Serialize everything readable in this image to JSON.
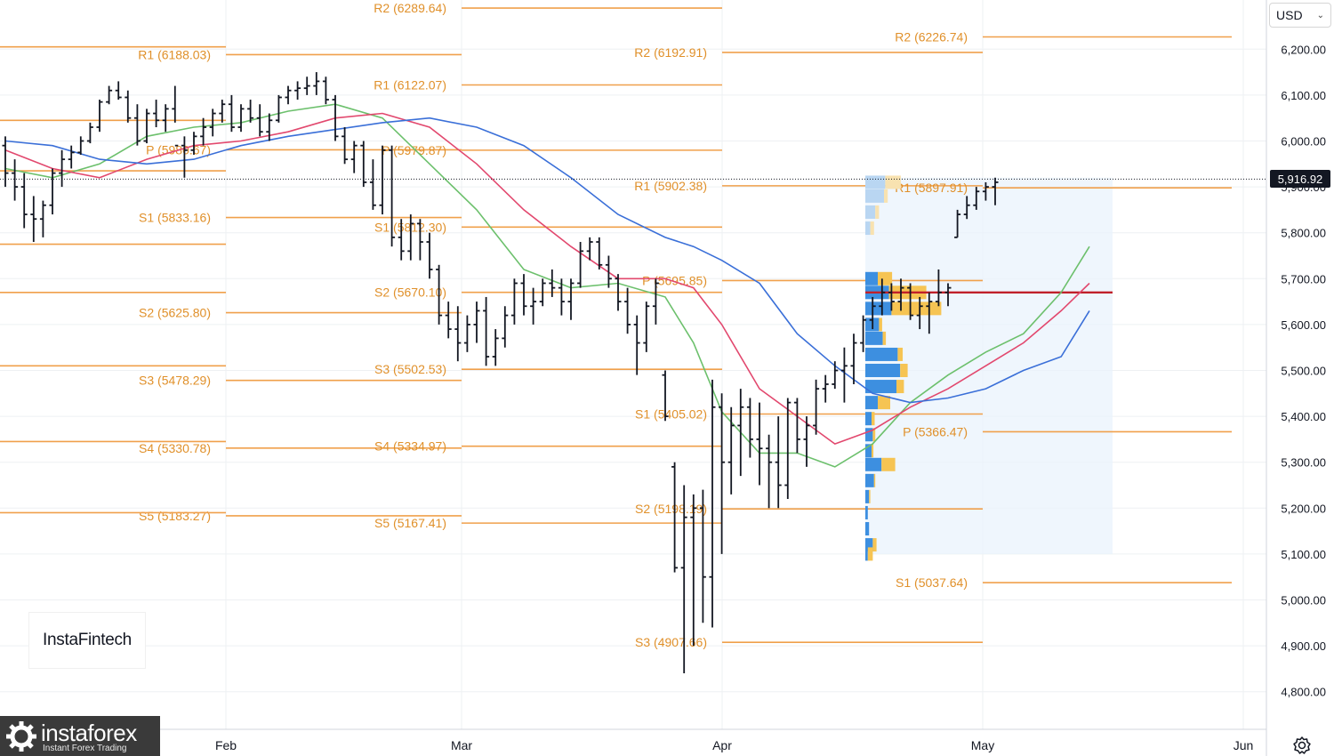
{
  "header": {
    "currency": "USD"
  },
  "price_scale": {
    "ticks": [
      {
        "value": 6200,
        "label": "6,200.00"
      },
      {
        "value": 6100,
        "label": "6,100.00"
      },
      {
        "value": 6000,
        "label": "6,000.00"
      },
      {
        "value": 5900,
        "label": "5,900.00"
      },
      {
        "value": 5800,
        "label": "5,800.00"
      },
      {
        "value": 5700,
        "label": "5,700.00"
      },
      {
        "value": 5600,
        "label": "5,600.00"
      },
      {
        "value": 5500,
        "label": "5,500.00"
      },
      {
        "value": 5400,
        "label": "5,400.00"
      },
      {
        "value": 5300,
        "label": "5,300.00"
      },
      {
        "value": 5200,
        "label": "5,200.00"
      },
      {
        "value": 5100,
        "label": "5,100.00"
      },
      {
        "value": 5000,
        "label": "5,000.00"
      },
      {
        "value": 4900,
        "label": "4,900.00"
      },
      {
        "value": 4800,
        "label": "4,800.00"
      }
    ],
    "last_price": "5,916.92"
  },
  "time_scale": [
    "Feb",
    "Mar",
    "Apr",
    "May",
    "Jun"
  ],
  "watermark": "InstaFintech",
  "brand": {
    "name": "instaforex",
    "tagline": "Instant Forex Trading"
  },
  "colors": {
    "pivot": "#f0a04b",
    "pivot_text": "#e0902a",
    "ma_fast": "#6cc06c",
    "ma_mid": "#e2486e",
    "ma_slow": "#3a6fd8",
    "bars": "#131722",
    "profile_up": "#3d8fe0",
    "profile_down": "#f6c453",
    "poc": "#c0202a"
  },
  "chart_data": {
    "type": "ohlc",
    "title": "",
    "ylim": [
      4720,
      6300
    ],
    "grid": true,
    "pivots": [
      {
        "period": "Jan",
        "levels": [
          {
            "name": "R1",
            "value": 6188.03,
            "label": "R1 (6188.03)"
          },
          {
            "name": "P",
            "value": 5980.67,
            "label": "P (5980.67)"
          },
          {
            "name": "S1",
            "value": 5833.16,
            "label": "S1 (5833.16)"
          },
          {
            "name": "S2",
            "value": 5625.8,
            "label": "S2 (5625.80)"
          },
          {
            "name": "S3",
            "value": 5478.29,
            "label": "S3 (5478.29)"
          },
          {
            "name": "S4",
            "value": 5330.78,
            "label": "S4 (5330.78)"
          },
          {
            "name": "S5",
            "value": 5183.27,
            "label": "S5 (5183.27)"
          }
        ]
      },
      {
        "period": "Feb",
        "levels": [
          {
            "name": "R2",
            "value": 6289.64,
            "label": "R2 (6289.64)"
          },
          {
            "name": "R1",
            "value": 6122.07,
            "label": "R1 (6122.07)"
          },
          {
            "name": "P",
            "value": 5979.87,
            "label": "P (5979.87)"
          },
          {
            "name": "S1",
            "value": 5812.3,
            "label": "S1 (5812.30)"
          },
          {
            "name": "S2",
            "value": 5670.1,
            "label": "S2 (5670.10)"
          },
          {
            "name": "S3",
            "value": 5502.53,
            "label": "S3 (5502.53)"
          },
          {
            "name": "S4",
            "value": 5334.97,
            "label": "S4 (5334.97)"
          },
          {
            "name": "S5",
            "value": 5167.41,
            "label": "S5 (5167.41)"
          }
        ]
      },
      {
        "period": "Mar",
        "levels": [
          {
            "name": "R2",
            "value": 6192.91,
            "label": "R2 (6192.91)"
          },
          {
            "name": "R1",
            "value": 5902.38,
            "label": "R1 (5902.38)"
          },
          {
            "name": "P",
            "value": 5695.85,
            "label": "P (5695.85)"
          },
          {
            "name": "S1",
            "value": 5405.02,
            "label": "S1 (5405.02)"
          },
          {
            "name": "S2",
            "value": 5198.19,
            "label": "S2 (5198.19)"
          },
          {
            "name": "S3",
            "value": 4907.66,
            "label": "S3 (4907.66)"
          }
        ]
      },
      {
        "period": "Apr",
        "levels": [
          {
            "name": "R2",
            "value": 6226.74,
            "label": "R2 (6226.74)"
          },
          {
            "name": "R1",
            "value": 5897.91,
            "label": "R1 (5897.91)"
          },
          {
            "name": "P",
            "value": 5366.47,
            "label": "P (5366.47)"
          },
          {
            "name": "S1",
            "value": 5037.64,
            "label": "S1 (5037.64)"
          }
        ]
      }
    ],
    "bars": [
      [
        5990,
        6010,
        5900,
        5930
      ],
      [
        5930,
        5960,
        5870,
        5900
      ],
      [
        5900,
        5930,
        5810,
        5840
      ],
      [
        5840,
        5880,
        5780,
        5830
      ],
      [
        5830,
        5870,
        5790,
        5860
      ],
      [
        5860,
        5940,
        5840,
        5930
      ],
      [
        5930,
        5980,
        5900,
        5960
      ],
      [
        5960,
        5990,
        5940,
        5975
      ],
      [
        5975,
        6010,
        5970,
        6000
      ],
      [
        6000,
        6040,
        5995,
        6030
      ],
      [
        6030,
        6090,
        6020,
        6085
      ],
      [
        6085,
        6120,
        6080,
        6110
      ],
      [
        6110,
        6130,
        6090,
        6095
      ],
      [
        6095,
        6110,
        6040,
        6050
      ],
      [
        6050,
        6080,
        5990,
        6000
      ],
      [
        6000,
        6070,
        5995,
        6060
      ],
      [
        6060,
        6090,
        6030,
        6045
      ],
      [
        6045,
        6080,
        6020,
        6070
      ],
      [
        6070,
        6120,
        6040,
        5990
      ],
      [
        5990,
        6010,
        5920,
        5980
      ],
      [
        5980,
        6020,
        5970,
        6010
      ],
      [
        6010,
        6050,
        5990,
        6030
      ],
      [
        6030,
        6070,
        6010,
        6060
      ],
      [
        6060,
        6090,
        6040,
        6080
      ],
      [
        6080,
        6100,
        6020,
        6030
      ],
      [
        6030,
        6080,
        6020,
        6070
      ],
      [
        6070,
        6090,
        6040,
        6050
      ],
      [
        6050,
        6080,
        6010,
        6020
      ],
      [
        6020,
        6060,
        6000,
        6045
      ],
      [
        6045,
        6100,
        6040,
        6095
      ],
      [
        6095,
        6120,
        6080,
        6110
      ],
      [
        6110,
        6130,
        6090,
        6115
      ],
      [
        6115,
        6140,
        6100,
        6120
      ],
      [
        6120,
        6150,
        6100,
        6130
      ],
      [
        6130,
        6140,
        6080,
        6090
      ],
      [
        6090,
        6100,
        6000,
        6010
      ],
      [
        6010,
        6030,
        5950,
        5960
      ],
      [
        5960,
        6000,
        5930,
        5990
      ],
      [
        5990,
        6000,
        5900,
        5910
      ],
      [
        5910,
        5960,
        5850,
        5860
      ],
      [
        5860,
        5990,
        5840,
        5980
      ],
      [
        5980,
        5990,
        5770,
        5790
      ],
      [
        5790,
        5830,
        5740,
        5760
      ],
      [
        5760,
        5840,
        5740,
        5820
      ],
      [
        5820,
        5830,
        5740,
        5780
      ],
      [
        5780,
        5800,
        5700,
        5720
      ],
      [
        5720,
        5730,
        5600,
        5620
      ],
      [
        5620,
        5650,
        5570,
        5590
      ],
      [
        5590,
        5640,
        5520,
        5560
      ],
      [
        5560,
        5620,
        5540,
        5600
      ],
      [
        5600,
        5650,
        5560,
        5630
      ],
      [
        5630,
        5660,
        5510,
        5530
      ],
      [
        5530,
        5590,
        5510,
        5570
      ],
      [
        5570,
        5640,
        5550,
        5620
      ],
      [
        5620,
        5700,
        5600,
        5690
      ],
      [
        5690,
        5710,
        5620,
        5640
      ],
      [
        5640,
        5680,
        5600,
        5650
      ],
      [
        5650,
        5700,
        5640,
        5690
      ],
      [
        5690,
        5720,
        5660,
        5680
      ],
      [
        5680,
        5700,
        5620,
        5650
      ],
      [
        5650,
        5700,
        5610,
        5690
      ],
      [
        5690,
        5780,
        5680,
        5760
      ],
      [
        5760,
        5790,
        5740,
        5780
      ],
      [
        5780,
        5790,
        5720,
        5730
      ],
      [
        5730,
        5750,
        5680,
        5700
      ],
      [
        5700,
        5710,
        5630,
        5650
      ],
      [
        5650,
        5680,
        5580,
        5600
      ],
      [
        5600,
        5620,
        5490,
        5560
      ],
      [
        5560,
        5650,
        5540,
        5640
      ],
      [
        5640,
        5700,
        5600,
        5690
      ],
      [
        5490,
        5500,
        5390,
        5400
      ],
      [
        5290,
        5300,
        5060,
        5070
      ],
      [
        5070,
        5250,
        4840,
        5180
      ],
      [
        5180,
        5230,
        4900,
        5200
      ],
      [
        5200,
        5240,
        4950,
        5050
      ],
      [
        5050,
        5480,
        4940,
        5420
      ],
      [
        5420,
        5450,
        5100,
        5300
      ],
      [
        5300,
        5420,
        5230,
        5380
      ],
      [
        5380,
        5460,
        5270,
        5420
      ],
      [
        5420,
        5440,
        5310,
        5350
      ],
      [
        5350,
        5430,
        5250,
        5330
      ],
      [
        5330,
        5360,
        5200,
        5300
      ],
      [
        5300,
        5400,
        5200,
        5250
      ],
      [
        5250,
        5440,
        5220,
        5430
      ],
      [
        5430,
        5440,
        5320,
        5350
      ],
      [
        5350,
        5400,
        5290,
        5380
      ],
      [
        5380,
        5480,
        5360,
        5460
      ],
      [
        5460,
        5490,
        5430,
        5470
      ],
      [
        5470,
        5520,
        5460,
        5500
      ],
      [
        5500,
        5550,
        5430,
        5510
      ],
      [
        5510,
        5580,
        5470,
        5560
      ],
      [
        5560,
        5620,
        5540,
        5610
      ],
      [
        5610,
        5660,
        5590,
        5640
      ],
      [
        5640,
        5700,
        5620,
        5670
      ],
      [
        5670,
        5690,
        5630,
        5650
      ],
      [
        5650,
        5700,
        5630,
        5680
      ],
      [
        5680,
        5690,
        5610,
        5620
      ],
      [
        5620,
        5660,
        5590,
        5640
      ],
      [
        5640,
        5670,
        5580,
        5650
      ],
      [
        5650,
        5720,
        5640,
        5670
      ],
      [
        5670,
        5690,
        5640,
        5680
      ],
      [
        5790,
        5850,
        5790,
        5840
      ],
      [
        5840,
        5880,
        5830,
        5860
      ],
      [
        5860,
        5900,
        5850,
        5890
      ],
      [
        5890,
        5910,
        5870,
        5900
      ],
      [
        5900,
        5920,
        5860,
        5910
      ]
    ],
    "moving_averages": [
      {
        "name": "",
        "color": "#6cc06c",
        "points": [
          [
            0,
            5940
          ],
          [
            5,
            5920
          ],
          [
            10,
            5950
          ],
          [
            15,
            6010
          ],
          [
            20,
            6030
          ],
          [
            25,
            6040
          ],
          [
            30,
            6065
          ],
          [
            35,
            6080
          ],
          [
            40,
            6050
          ],
          [
            45,
            5950
          ],
          [
            50,
            5850
          ],
          [
            55,
            5720
          ],
          [
            60,
            5680
          ],
          [
            65,
            5690
          ],
          [
            70,
            5660
          ],
          [
            73,
            5560
          ],
          [
            76,
            5410
          ],
          [
            80,
            5320
          ],
          [
            84,
            5320
          ],
          [
            88,
            5290
          ],
          [
            92,
            5340
          ],
          [
            96,
            5430
          ],
          [
            100,
            5490
          ],
          [
            104,
            5540
          ],
          [
            108,
            5580
          ],
          [
            112,
            5670
          ],
          [
            115,
            5770
          ]
        ]
      },
      {
        "name": "",
        "color": "#e2486e",
        "points": [
          [
            0,
            5980
          ],
          [
            5,
            5940
          ],
          [
            10,
            5920
          ],
          [
            15,
            5960
          ],
          [
            20,
            5990
          ],
          [
            25,
            6000
          ],
          [
            30,
            6020
          ],
          [
            35,
            6050
          ],
          [
            40,
            6060
          ],
          [
            45,
            6030
          ],
          [
            50,
            5950
          ],
          [
            55,
            5850
          ],
          [
            60,
            5770
          ],
          [
            65,
            5700
          ],
          [
            70,
            5700
          ],
          [
            73,
            5680
          ],
          [
            76,
            5600
          ],
          [
            80,
            5460
          ],
          [
            84,
            5400
          ],
          [
            88,
            5340
          ],
          [
            92,
            5370
          ],
          [
            96,
            5420
          ],
          [
            100,
            5460
          ],
          [
            104,
            5510
          ],
          [
            108,
            5560
          ],
          [
            112,
            5630
          ],
          [
            115,
            5690
          ]
        ]
      },
      {
        "name": "",
        "color": "#3a6fd8",
        "points": [
          [
            0,
            6000
          ],
          [
            5,
            5990
          ],
          [
            10,
            5960
          ],
          [
            15,
            5950
          ],
          [
            20,
            5960
          ],
          [
            25,
            5990
          ],
          [
            30,
            6010
          ],
          [
            35,
            6025
          ],
          [
            40,
            6040
          ],
          [
            45,
            6050
          ],
          [
            50,
            6030
          ],
          [
            55,
            5990
          ],
          [
            60,
            5920
          ],
          [
            65,
            5840
          ],
          [
            70,
            5790
          ],
          [
            73,
            5770
          ],
          [
            76,
            5740
          ],
          [
            80,
            5690
          ],
          [
            84,
            5580
          ],
          [
            88,
            5510
          ],
          [
            92,
            5450
          ],
          [
            96,
            5430
          ],
          [
            100,
            5440
          ],
          [
            104,
            5460
          ],
          [
            108,
            5500
          ],
          [
            112,
            5530
          ],
          [
            115,
            5630
          ]
        ]
      }
    ],
    "volume_profile": {
      "poc": 5670,
      "rows": [
        {
          "price": 5910,
          "up": 0.32,
          "down": 0.25
        },
        {
          "price": 5880,
          "up": 0.3,
          "down": 0.06
        },
        {
          "price": 5845,
          "up": 0.16,
          "down": 0.06
        },
        {
          "price": 5810,
          "up": 0.08,
          "down": 0.06
        },
        {
          "price": 5700,
          "up": 0.2,
          "down": 0.23
        },
        {
          "price": 5670,
          "up": 0.38,
          "down": 0.6
        },
        {
          "price": 5635,
          "up": 0.42,
          "down": 0.8
        },
        {
          "price": 5600,
          "up": 0.22,
          "down": 0.05
        },
        {
          "price": 5570,
          "up": 0.28,
          "down": 0.05
        },
        {
          "price": 5535,
          "up": 0.52,
          "down": 0.08
        },
        {
          "price": 5500,
          "up": 0.56,
          "down": 0.12
        },
        {
          "price": 5465,
          "up": 0.5,
          "down": 0.12
        },
        {
          "price": 5430,
          "up": 0.2,
          "down": 0.2
        },
        {
          "price": 5395,
          "up": 0.1,
          "down": 0.05
        },
        {
          "price": 5360,
          "up": 0.12,
          "down": 0.04
        },
        {
          "price": 5325,
          "up": 0.1,
          "down": 0.03
        },
        {
          "price": 5295,
          "up": 0.26,
          "down": 0.22
        },
        {
          "price": 5260,
          "up": 0.14,
          "down": 0.02
        },
        {
          "price": 5225,
          "up": 0.06,
          "down": 0.02
        },
        {
          "price": 5190,
          "up": 0.04,
          "down": 0.0
        },
        {
          "price": 5155,
          "up": 0.06,
          "down": 0.0
        },
        {
          "price": 5120,
          "up": 0.12,
          "down": 0.06
        },
        {
          "price": 5100,
          "up": 0.04,
          "down": 0.08
        }
      ]
    }
  }
}
